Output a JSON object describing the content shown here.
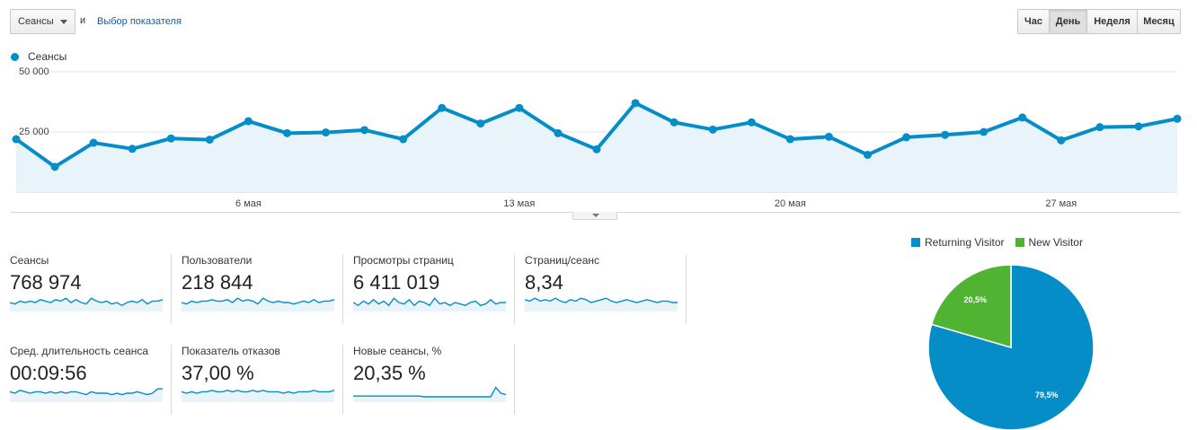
{
  "controls": {
    "metric_select": "Сеансы",
    "and_text": "и",
    "select_metric_link": "Выбор показателя",
    "periods": [
      {
        "label": "Час",
        "active": false
      },
      {
        "label": "День",
        "active": true
      },
      {
        "label": "Неделя",
        "active": false
      },
      {
        "label": "Месяц",
        "active": false
      }
    ]
  },
  "legend": {
    "series_label": "Сеансы",
    "color": "#058dc7"
  },
  "chart_data": {
    "type": "area",
    "series": [
      {
        "name": "Сеансы",
        "values": [
          22000,
          10500,
          20500,
          18000,
          22300,
          21800,
          29500,
          24500,
          24800,
          25800,
          22000,
          35000,
          28500,
          35000,
          24500,
          17800,
          37000,
          29000,
          26000,
          29000,
          22000,
          23000,
          15500,
          22800,
          23800,
          25000,
          31000,
          21500,
          27000,
          27300,
          30500
        ]
      }
    ],
    "ylim": [
      0,
      50000
    ],
    "y_ticks": [
      "50 000",
      "25 000"
    ],
    "y_tick_values": [
      50000,
      25000
    ],
    "x_ticks": [
      {
        "label": "6 мая",
        "index": 6
      },
      {
        "label": "13 мая",
        "index": 13
      },
      {
        "label": "20 мая",
        "index": 20
      },
      {
        "label": "27 мая",
        "index": 27
      }
    ],
    "grid": true
  },
  "scorecards": [
    {
      "label": "Сеансы",
      "value": "768 974",
      "spark": [
        5,
        4,
        6,
        5,
        6,
        5,
        7,
        6,
        5,
        7,
        6,
        8,
        5,
        7,
        5,
        4,
        8,
        6,
        5,
        6,
        4,
        5,
        3,
        5,
        6,
        5,
        7,
        4,
        6,
        6,
        7
      ]
    },
    {
      "label": "Пользователи",
      "value": "218 844",
      "spark": [
        5,
        4,
        6,
        5,
        6,
        6,
        7,
        6,
        6,
        7,
        5,
        8,
        6,
        7,
        6,
        4,
        8,
        6,
        5,
        6,
        5,
        5,
        4,
        5,
        6,
        5,
        7,
        5,
        6,
        6,
        7
      ]
    },
    {
      "label": "Просмотры страниц",
      "value": "6 411 019",
      "spark": [
        5,
        3,
        6,
        4,
        7,
        4,
        6,
        3,
        8,
        5,
        4,
        7,
        3,
        6,
        5,
        3,
        8,
        4,
        5,
        3,
        5,
        4,
        3,
        5,
        6,
        3,
        4,
        7,
        4,
        5,
        5
      ]
    },
    {
      "label": "Страниц/сеанс",
      "value": "8,34",
      "spark": [
        7,
        6,
        8,
        6,
        7,
        6,
        8,
        6,
        5,
        7,
        6,
        8,
        7,
        5,
        6,
        7,
        8,
        6,
        5,
        6,
        7,
        6,
        5,
        6,
        7,
        6,
        5,
        6,
        6,
        5,
        5
      ]
    },
    {
      "label": "Сред. длительность сеанса",
      "value": "00:09:56",
      "spark": [
        6,
        5,
        7,
        6,
        5,
        6,
        6,
        5,
        6,
        5,
        6,
        5,
        6,
        6,
        5,
        4,
        6,
        5,
        5,
        5,
        4,
        5,
        4,
        5,
        5,
        6,
        5,
        4,
        5,
        8,
        8
      ]
    },
    {
      "label": "Показатель отказов",
      "value": "37,00 %",
      "spark": [
        6,
        5,
        6,
        5,
        6,
        6,
        7,
        6,
        6,
        7,
        6,
        7,
        6,
        6,
        7,
        6,
        7,
        6,
        6,
        6,
        5,
        6,
        5,
        6,
        6,
        6,
        7,
        6,
        6,
        6,
        7
      ]
    },
    {
      "label": "Новые сеансы, %",
      "value": "20,35 %",
      "spark": [
        3,
        3,
        3,
        3,
        3,
        3,
        3,
        3,
        3,
        3,
        3,
        3,
        3,
        3,
        2.5,
        2.5,
        2.5,
        2.5,
        2.5,
        2.5,
        2.5,
        2.5,
        2.5,
        2.5,
        2.5,
        2.5,
        2.5,
        2.5,
        9,
        5,
        4
      ]
    }
  ],
  "pie_chart": {
    "type": "pie",
    "slices": [
      {
        "name": "Returning Visitor",
        "value": 79.5,
        "label": "79,5%",
        "color": "#058dc7"
      },
      {
        "name": "New Visitor",
        "value": 20.5,
        "label": "20,5%",
        "color": "#50b432"
      }
    ]
  }
}
